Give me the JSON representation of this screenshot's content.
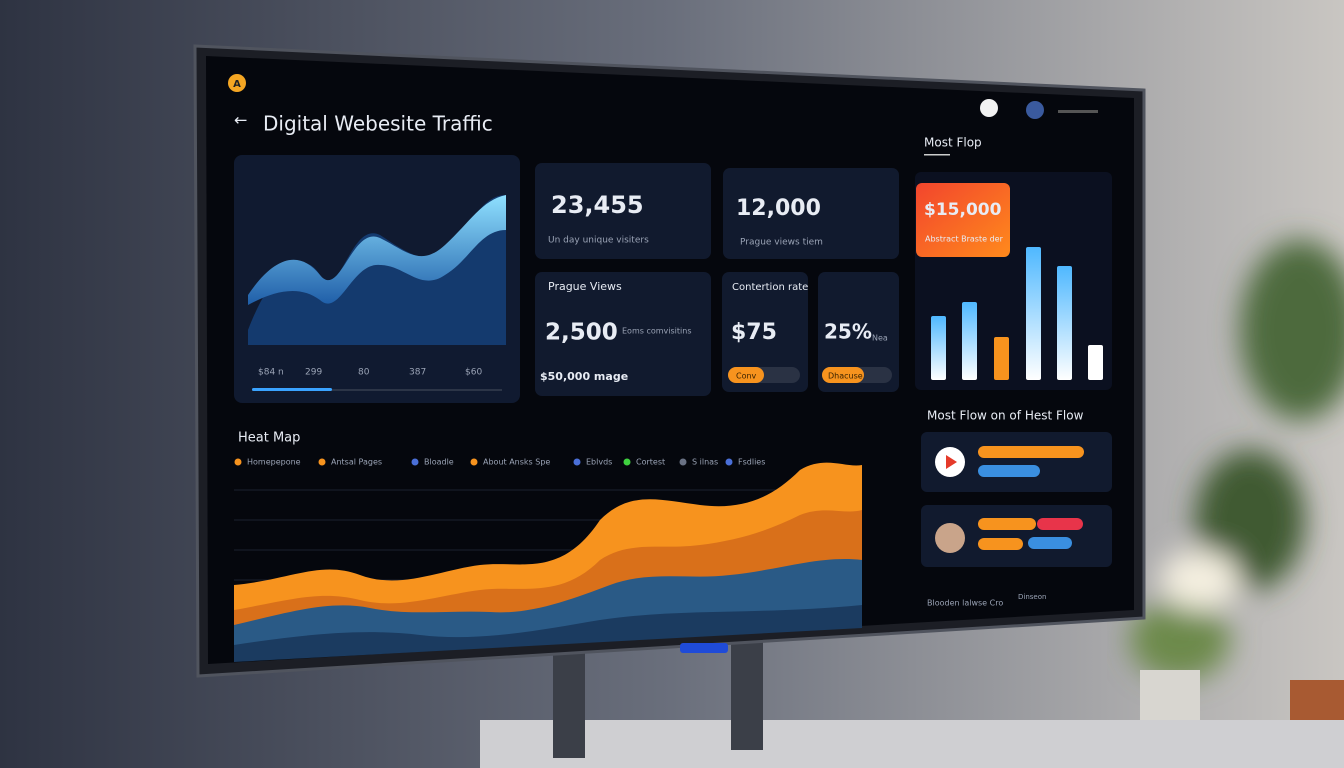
{
  "header": {
    "logo": "A",
    "title": "Digital Webesite Traffic"
  },
  "traffic_panel": {
    "ticks": [
      "$84 n",
      "299",
      "80",
      "387",
      "$60"
    ]
  },
  "stats": [
    {
      "value": "23,455",
      "label": "Un day unique visiters"
    },
    {
      "value": "12,000",
      "label": "Prague views tiem"
    }
  ],
  "page_views": {
    "title": "Prague Views",
    "value": "2,500",
    "note": "Eoms comvisitins",
    "footer": "$50,000 mage"
  },
  "conversion": {
    "title": "Contertion rate",
    "value": "$75",
    "button": "Conv",
    "value2": "25%",
    "unit2": "Nea",
    "button2": "Dhacuse"
  },
  "most_flop": {
    "title": "Most Flop",
    "amount": "$15,000",
    "caption": "Abstract Braste der"
  },
  "most_flow": {
    "title": "Most Flow on of Hest Flow",
    "footer": "Blooden lalwse Cro",
    "footer2": "Dinseon"
  },
  "heat_map": {
    "title": "Heat Map",
    "legend": [
      {
        "name": "Homepepone",
        "color": "#f7931e"
      },
      {
        "name": "Antsal Pages",
        "color": "#f7931e"
      },
      {
        "name": "Bloadle",
        "color": "#4a6fd8"
      },
      {
        "name": "About Ansks Spe",
        "color": "#f7931e"
      },
      {
        "name": "Eblvds",
        "color": "#4a6fd8"
      },
      {
        "name": "Cortest",
        "color": "#3fd13f"
      },
      {
        "name": "S ilnas",
        "color": "#6a7284"
      },
      {
        "name": "Fsdlies",
        "color": "#4a6fd8"
      }
    ]
  }
}
